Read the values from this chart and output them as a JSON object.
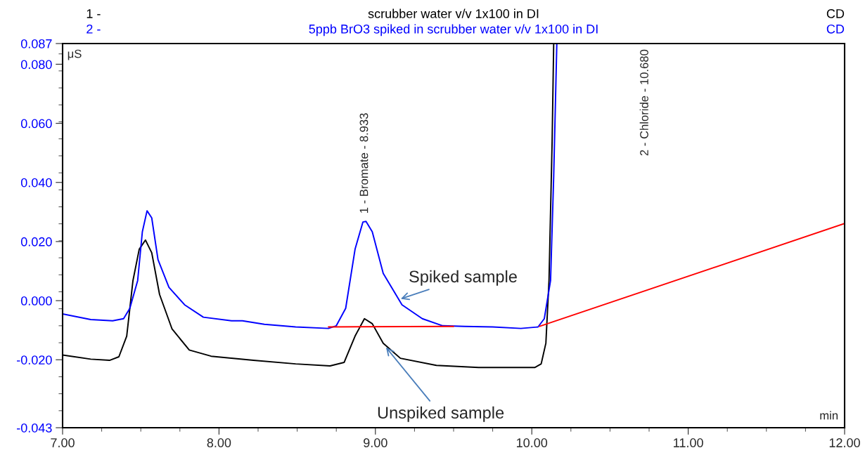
{
  "chart_data": {
    "type": "line",
    "xlabel": "min",
    "ylabel": "μS",
    "xlim": [
      7.0,
      12.0
    ],
    "ylim": [
      -0.043,
      0.087
    ],
    "xticks": [
      {
        "value": 7,
        "label": "7.00"
      },
      {
        "value": 8,
        "label": "8.00"
      },
      {
        "value": 9,
        "label": "9.00"
      },
      {
        "value": 10,
        "label": "10.00"
      },
      {
        "value": 11,
        "label": "11.00"
      },
      {
        "value": 12,
        "label": "12.00"
      }
    ],
    "yticks": [
      {
        "value": -0.043,
        "label": "-0.043"
      },
      {
        "value": -0.02,
        "label": "-0.020"
      },
      {
        "value": 0,
        "label": "0.000"
      },
      {
        "value": 0.02,
        "label": "0.020"
      },
      {
        "value": 0.04,
        "label": "0.040"
      },
      {
        "value": 0.06,
        "label": "0.060"
      },
      {
        "value": 0.08,
        "label": "0.080"
      },
      {
        "value": 0.087,
        "label": "0.087"
      }
    ],
    "grid": false,
    "legend": "top",
    "series": [
      {
        "name": "scrubber water v/v 1x100 in DI",
        "color": "#000000",
        "x": [
          7.0,
          7.18,
          7.3,
          7.36,
          7.41,
          7.45,
          7.49,
          7.53,
          7.57,
          7.62,
          7.7,
          7.81,
          7.95,
          8.22,
          8.49,
          8.71,
          8.8,
          8.87,
          8.93,
          8.98,
          9.05,
          9.16,
          9.39,
          9.66,
          10.02,
          10.06,
          10.09,
          10.11,
          10.13,
          10.14
        ],
        "values": [
          -0.0184,
          -0.0198,
          -0.0202,
          -0.019,
          -0.012,
          0.0068,
          0.0174,
          0.0205,
          0.0162,
          0.0021,
          -0.0096,
          -0.0167,
          -0.0188,
          -0.0202,
          -0.0214,
          -0.0221,
          -0.0209,
          -0.012,
          -0.0061,
          -0.0078,
          -0.0144,
          -0.0195,
          -0.0219,
          -0.0226,
          -0.0226,
          -0.0214,
          -0.0144,
          0.0068,
          0.0539,
          0.087
        ]
      },
      {
        "name": "5ppb BrO3 spiked in scrubber water v/v 1x100 in DI",
        "color": "#0000ff",
        "x": [
          7.0,
          7.18,
          7.32,
          7.39,
          7.43,
          7.48,
          7.51,
          7.54,
          7.57,
          7.61,
          7.68,
          7.78,
          7.9,
          8.08,
          8.15,
          8.29,
          8.49,
          8.7,
          8.75,
          8.81,
          8.87,
          8.92,
          8.94,
          8.98,
          9.05,
          9.17,
          9.3,
          9.43,
          9.57,
          9.75,
          9.93,
          10.04,
          10.08,
          10.12,
          10.14,
          10.16
        ],
        "values": [
          -0.0045,
          -0.0064,
          -0.0068,
          -0.0061,
          -0.0026,
          0.0068,
          0.0233,
          0.0304,
          0.028,
          0.0139,
          0.0045,
          -0.0014,
          -0.0056,
          -0.0068,
          -0.0068,
          -0.008,
          -0.0089,
          -0.0094,
          -0.0085,
          -0.0026,
          0.0174,
          0.0266,
          0.0268,
          0.0233,
          0.0092,
          -0.0014,
          -0.0061,
          -0.0085,
          -0.0087,
          -0.0089,
          -0.0094,
          -0.0089,
          -0.0061,
          0.0068,
          0.042,
          0.087
        ]
      },
      {
        "color": "#ff0000",
        "x": [
          8.7,
          9.5
        ],
        "values": [
          -0.0089,
          -0.0087
        ]
      },
      {
        "color": "#ff0000",
        "x": [
          10.05,
          12.0
        ],
        "values": [
          -0.0087,
          0.0261
        ]
      }
    ],
    "annotations": [
      "1 -",
      "CD",
      "2 -",
      "CD",
      {
        "text": "1 - Bromate - 8.933",
        "x": 8.933,
        "y": 0.0268
      },
      "2 - Chloride - 10.680",
      {
        "text": "Spiked sample",
        "x": 9.15,
        "y": 0.0004
      },
      {
        "text": "Unspiked sample",
        "x": 9.06,
        "y": -0.0153
      }
    ]
  }
}
